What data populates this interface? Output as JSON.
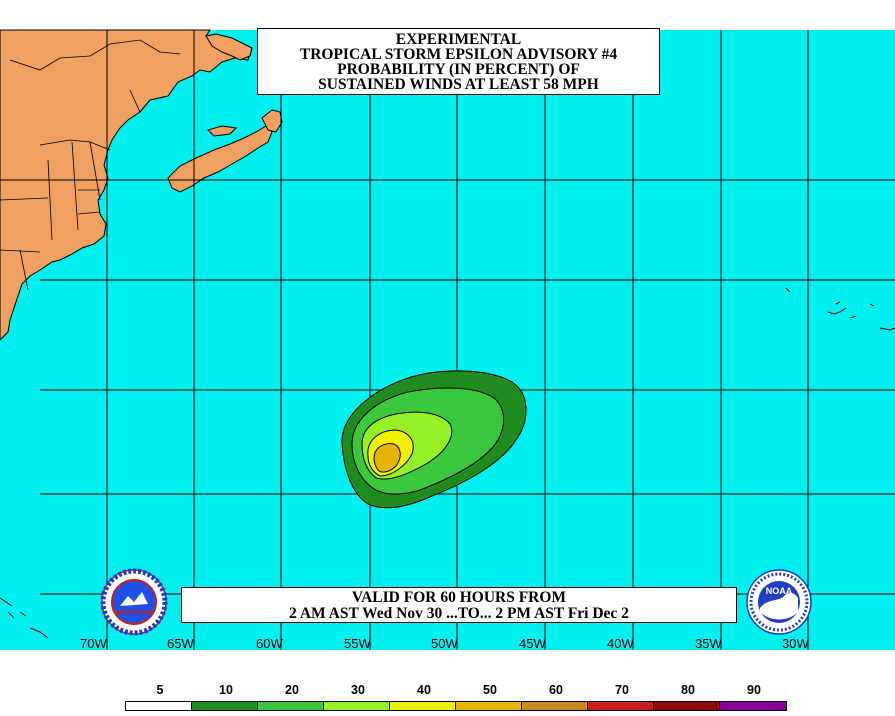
{
  "title": {
    "line1": "EXPERIMENTAL",
    "line2": "TROPICAL STORM EPSILON ADVISORY #4",
    "line3": "PROBABILITY (IN PERCENT) OF",
    "line4": "SUSTAINED WINDS AT LEAST 58 MPH"
  },
  "valid": {
    "line1": "VALID FOR 60 HOURS FROM",
    "line2": "2 AM AST Wed Nov 30 ...TO... 2 PM AST Fri Dec 2"
  },
  "longitude_labels": [
    "70W",
    "65W",
    "60W",
    "55W",
    "50W",
    "45W",
    "40W",
    "35W",
    "30W"
  ],
  "legend": {
    "thresholds": [
      "5",
      "10",
      "20",
      "30",
      "40",
      "50",
      "60",
      "70",
      "80",
      "90"
    ],
    "colors": [
      "#ffffff",
      "#1e8c1e",
      "#3cc83c",
      "#96f028",
      "#f0f000",
      "#e6b400",
      "#c88c1e",
      "#c81e1e",
      "#8c0a0a",
      "#8c00a0"
    ]
  },
  "colors": {
    "ocean": "#00f0f0",
    "land": "#f0a060",
    "grid": "#000000"
  },
  "logos": {
    "nws_icon": "national-weather-service-logo",
    "noaa_icon": "noaa-logo",
    "noaa_text": "NOAA"
  }
}
